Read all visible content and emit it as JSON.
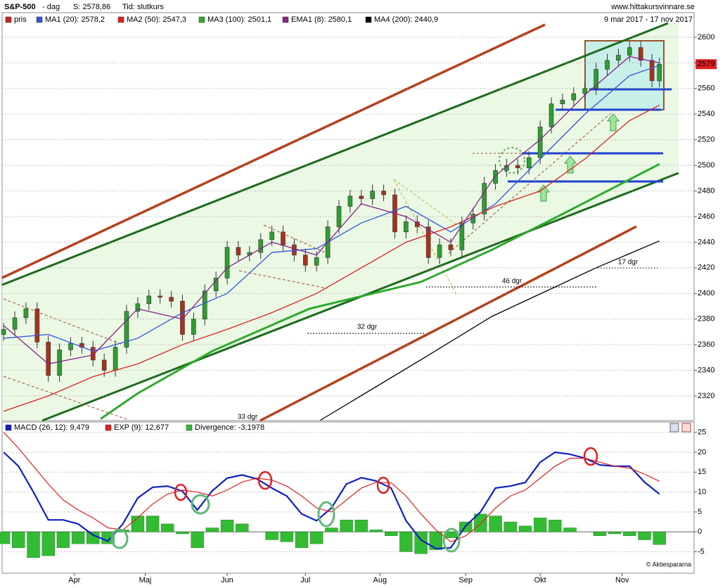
{
  "chart_data": [
    {
      "type": "candlestick",
      "title": "S&P-500",
      "subtitle": "- dag",
      "close_label": "S: 2578,86",
      "time_label": "Tid: slutkurs",
      "source": "www.hittakursvinnare.se",
      "date_range": "9 mar 2017 - 17 nov 2017",
      "candles": {
        "name": "pris",
        "color": "#cc2222",
        "up_color": "#2f9e2f",
        "down_color": "#a8321c",
        "x": [
          0,
          3,
          6,
          9,
          12,
          15,
          18,
          21,
          24,
          27,
          30,
          33,
          36,
          39,
          42,
          45,
          48,
          51,
          54,
          57,
          60,
          63,
          66,
          69,
          72,
          75,
          78,
          81,
          84,
          87,
          90,
          93,
          96,
          99,
          102,
          105,
          108,
          111,
          114,
          117,
          120,
          123,
          126,
          129,
          132,
          135,
          138,
          141,
          144,
          147,
          150,
          153,
          156,
          159,
          162,
          165,
          168,
          171,
          174,
          176
        ],
        "open": [
          2368,
          2372,
          2381,
          2388,
          2362,
          2336,
          2356,
          2361,
          2358,
          2348,
          2340,
          2358,
          2386,
          2392,
          2398,
          2397,
          2394,
          2368,
          2380,
          2402,
          2412,
          2436,
          2430,
          2432,
          2442,
          2448,
          2438,
          2430,
          2422,
          2428,
          2452,
          2468,
          2476,
          2474,
          2480,
          2477,
          2448,
          2456,
          2452,
          2428,
          2438,
          2434,
          2455,
          2462,
          2486,
          2496,
          2500,
          2498,
          2506,
          2530,
          2548,
          2551,
          2556,
          2560,
          2575,
          2582,
          2586,
          2592,
          2582,
          2566
        ],
        "high": [
          2377,
          2386,
          2393,
          2393,
          2367,
          2361,
          2366,
          2366,
          2363,
          2353,
          2363,
          2391,
          2397,
          2403,
          2403,
          2402,
          2399,
          2385,
          2407,
          2417,
          2441,
          2441,
          2437,
          2447,
          2453,
          2453,
          2443,
          2435,
          2433,
          2457,
          2473,
          2481,
          2481,
          2485,
          2485,
          2482,
          2461,
          2461,
          2457,
          2443,
          2443,
          2460,
          2467,
          2491,
          2501,
          2505,
          2505,
          2511,
          2535,
          2553,
          2556,
          2561,
          2565,
          2580,
          2587,
          2591,
          2597,
          2597,
          2587,
          2584
        ],
        "low": [
          2363,
          2367,
          2376,
          2357,
          2331,
          2331,
          2351,
          2353,
          2343,
          2335,
          2335,
          2353,
          2381,
          2387,
          2392,
          2389,
          2363,
          2363,
          2375,
          2397,
          2407,
          2425,
          2425,
          2427,
          2437,
          2433,
          2425,
          2417,
          2417,
          2423,
          2447,
          2463,
          2469,
          2469,
          2472,
          2443,
          2443,
          2447,
          2423,
          2423,
          2429,
          2429,
          2450,
          2457,
          2481,
          2491,
          2493,
          2493,
          2501,
          2525,
          2543,
          2546,
          2551,
          2555,
          2570,
          2577,
          2581,
          2577,
          2561,
          2561
        ],
        "close": [
          2372,
          2381,
          2388,
          2362,
          2336,
          2356,
          2361,
          2358,
          2348,
          2340,
          2358,
          2386,
          2392,
          2398,
          2397,
          2394,
          2368,
          2380,
          2402,
          2412,
          2436,
          2430,
          2432,
          2442,
          2448,
          2438,
          2430,
          2422,
          2428,
          2452,
          2468,
          2476,
          2474,
          2480,
          2477,
          2448,
          2456,
          2452,
          2428,
          2438,
          2434,
          2455,
          2462,
          2486,
          2496,
          2500,
          2498,
          2506,
          2530,
          2548,
          2551,
          2556,
          2560,
          2575,
          2582,
          2586,
          2592,
          2582,
          2566,
          2579
        ]
      },
      "series": [
        {
          "name": "MA1 (20): 2578,2",
          "color": "#3355dd",
          "x": [
            0,
            12,
            24,
            36,
            48,
            60,
            72,
            84,
            96,
            108,
            120,
            132,
            144,
            156,
            168,
            176
          ],
          "values": [
            2365,
            2368,
            2355,
            2365,
            2385,
            2400,
            2432,
            2435,
            2455,
            2468,
            2448,
            2470,
            2505,
            2540,
            2570,
            2578
          ]
        },
        {
          "name": "MA2 (50): 2547,3",
          "color": "#e02020",
          "x": [
            0,
            12,
            24,
            36,
            48,
            60,
            72,
            84,
            96,
            108,
            120,
            132,
            144,
            156,
            168,
            176
          ],
          "values": [
            2308,
            2320,
            2335,
            2345,
            2360,
            2372,
            2385,
            2400,
            2420,
            2440,
            2452,
            2468,
            2480,
            2505,
            2535,
            2547
          ]
        },
        {
          "name": "MA3 (100): 2501,1",
          "color": "#2eaa2e",
          "x": [
            26,
            36,
            56,
            82,
            112,
            131,
            150,
            176
          ],
          "values": [
            2302,
            2322,
            2355,
            2388,
            2409,
            2434,
            2462,
            2501
          ]
        },
        {
          "name": "EMA1 (8): 2580,1",
          "color": "#882288",
          "x": [
            0,
            12,
            24,
            36,
            48,
            60,
            72,
            84,
            96,
            108,
            120,
            132,
            144,
            156,
            168,
            176
          ],
          "values": [
            2375,
            2345,
            2352,
            2388,
            2380,
            2420,
            2440,
            2430,
            2470,
            2460,
            2440,
            2492,
            2520,
            2555,
            2585,
            2580
          ]
        },
        {
          "name": "MA4 (200): 2440,9",
          "color": "#000000",
          "x": [
            85,
            113,
            131,
            159,
            176
          ],
          "values": [
            2301,
            2350,
            2382,
            2420,
            2441
          ]
        }
      ],
      "xlim": [
        -0.4,
        185.3
      ],
      "ylim": [
        2301,
        2619
      ],
      "yticks": [
        2320,
        2340,
        2360,
        2380,
        2400,
        2420,
        2440,
        2460,
        2480,
        2500,
        2520,
        2540,
        2560,
        2580,
        2600
      ],
      "grid": true,
      "last_value": 2579,
      "annotations": [
        "17 dgr",
        "46 dgr",
        "32 dgr",
        "33 dgr"
      ]
    },
    {
      "type": "line",
      "copyright": "© Aktiespararna",
      "x": [
        0,
        4,
        8,
        12,
        16,
        20,
        24,
        28,
        32,
        36,
        40,
        44,
        48,
        52,
        56,
        60,
        64,
        68,
        72,
        76,
        80,
        84,
        88,
        92,
        96,
        100,
        104,
        108,
        112,
        116,
        120,
        124,
        128,
        132,
        136,
        140,
        144,
        148,
        152,
        156,
        160,
        164,
        168,
        172,
        176
      ],
      "series": [
        {
          "name": "MACD (26, 12): 9,479",
          "color": "#1020c0",
          "values": [
            20,
            16.5,
            10,
            3,
            3,
            2,
            -0.8,
            -2.3,
            2,
            8.5,
            11.2,
            11.5,
            10.2,
            5.5,
            10.3,
            13.5,
            14.3,
            13.3,
            11,
            9,
            4.5,
            2.8,
            6,
            12,
            13.6,
            12.8,
            11,
            2.8,
            -2,
            -4.2,
            -4,
            1.5,
            5,
            11,
            11.5,
            12.4,
            17.5,
            20,
            19.5,
            18.5,
            16.8,
            16.5,
            16.5,
            12.5,
            9.5
          ]
        },
        {
          "name": "EXP (9): 12,677",
          "color": "#e02020",
          "values": [
            25,
            21,
            16.5,
            12,
            8,
            5.5,
            3.5,
            1,
            0.5,
            3.5,
            7,
            9.5,
            10.5,
            10,
            9,
            10.5,
            12.5,
            13.5,
            13,
            11.5,
            9,
            6,
            5,
            8,
            11,
            12.5,
            12.3,
            9,
            4.5,
            0.5,
            -2.5,
            -1,
            2,
            6,
            9,
            10.5,
            13.5,
            16.5,
            18.5,
            18.5,
            17.5,
            16.5,
            16,
            14.5,
            12.7
          ]
        },
        {
          "name": "Divergence: -3,1978",
          "color": "#33bb33",
          "type": "bar",
          "values": [
            -3,
            -4,
            -6.5,
            -6,
            -4,
            -3,
            -3,
            -3,
            0.5,
            4,
            4,
            2,
            -0.5,
            -4,
            1,
            3,
            2,
            0,
            -2,
            -2.5,
            -4,
            -3,
            1,
            3,
            3,
            0.5,
            -1,
            -5,
            -5.5,
            -4.5,
            -1.5,
            2.5,
            4.5,
            4,
            2.5,
            1.5,
            3.5,
            3,
            1,
            0,
            -1,
            -0.5,
            -1,
            -2,
            -3.2
          ]
        }
      ],
      "xlim": [
        -0.4,
        185.3
      ],
      "ylim": [
        -10.4,
        27.6
      ],
      "yticks": [
        -5,
        0,
        5,
        10,
        15,
        20,
        25
      ],
      "xticks": [
        {
          "value": 19,
          "label": "Apr"
        },
        {
          "value": 38,
          "label": "Maj"
        },
        {
          "value": 60,
          "label": "Jun"
        },
        {
          "value": 81,
          "label": "Jul"
        },
        {
          "value": 101,
          "label": "Aug"
        },
        {
          "value": 124,
          "label": "Sep"
        },
        {
          "value": 144,
          "label": "Okt"
        },
        {
          "value": 166,
          "label": "Nov"
        }
      ],
      "grid": true
    }
  ]
}
